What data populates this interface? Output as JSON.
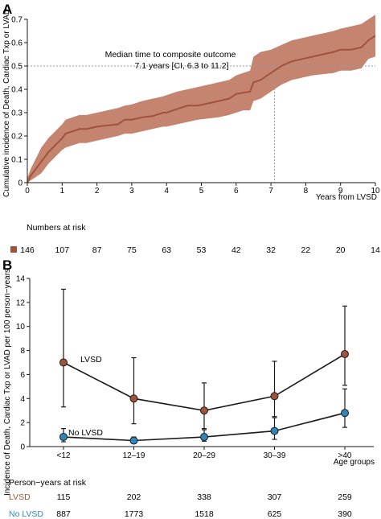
{
  "colors": {
    "lvsd": "#a0523d",
    "band": "#c48470",
    "no_lvsd": "#2f86bd",
    "axis": "#1a1a1a",
    "ref": "#9a9a9a"
  },
  "chart_data": [
    {
      "type": "line",
      "panel_label": "A",
      "ylabel": "Cumulative incidence of Death, Cardiac Txp or LVAD",
      "xlabel": "Years from LVSD",
      "xlim": [
        0,
        10
      ],
      "ylim": [
        0,
        0.7
      ],
      "xticks": [
        "0",
        "1",
        "2",
        "3",
        "4",
        "5",
        "6",
        "7",
        "8",
        "9",
        "10"
      ],
      "yticks": [
        "0",
        "0.1",
        "0.2",
        "0.3",
        "0.4",
        "0.5",
        "0.6",
        "0.7"
      ],
      "annotation": [
        "Median time to composite outcome",
        "7.1 years [CI, 6.3 to 11.2]"
      ],
      "median_reference": {
        "x": 7.1,
        "y": 0.5
      },
      "series": [
        {
          "x": [
            0,
            0.1,
            0.2,
            0.3,
            0.4,
            0.5,
            0.6,
            0.8,
            1.0,
            1.1,
            1.3,
            1.5,
            1.7,
            2.0,
            2.3,
            2.6,
            2.8,
            3.0,
            3.3,
            3.6,
            3.9,
            4.0,
            4.3,
            4.6,
            4.9,
            5.2,
            5.5,
            5.8,
            6.0,
            6.2,
            6.4,
            6.5,
            6.7,
            7.0,
            7.3,
            7.6,
            7.9,
            8.2,
            8.5,
            8.8,
            9.0,
            9.3,
            9.6,
            9.8,
            10.0
          ],
          "y": [
            0,
            0.03,
            0.05,
            0.07,
            0.09,
            0.11,
            0.13,
            0.16,
            0.19,
            0.21,
            0.22,
            0.23,
            0.23,
            0.24,
            0.245,
            0.25,
            0.27,
            0.27,
            0.28,
            0.285,
            0.3,
            0.3,
            0.315,
            0.33,
            0.33,
            0.34,
            0.35,
            0.36,
            0.38,
            0.385,
            0.39,
            0.43,
            0.44,
            0.47,
            0.5,
            0.52,
            0.53,
            0.54,
            0.55,
            0.56,
            0.57,
            0.57,
            0.58,
            0.61,
            0.63
          ],
          "lower": [
            0,
            0.01,
            0.02,
            0.03,
            0.04,
            0.06,
            0.08,
            0.11,
            0.14,
            0.15,
            0.16,
            0.17,
            0.17,
            0.18,
            0.19,
            0.2,
            0.21,
            0.21,
            0.22,
            0.23,
            0.24,
            0.24,
            0.25,
            0.26,
            0.27,
            0.275,
            0.28,
            0.29,
            0.3,
            0.31,
            0.31,
            0.35,
            0.36,
            0.39,
            0.42,
            0.44,
            0.45,
            0.46,
            0.465,
            0.47,
            0.48,
            0.48,
            0.49,
            0.53,
            0.54
          ],
          "upper": [
            0.02,
            0.06,
            0.09,
            0.12,
            0.15,
            0.17,
            0.19,
            0.22,
            0.25,
            0.27,
            0.28,
            0.29,
            0.29,
            0.3,
            0.31,
            0.32,
            0.33,
            0.335,
            0.35,
            0.36,
            0.37,
            0.375,
            0.39,
            0.4,
            0.41,
            0.42,
            0.43,
            0.44,
            0.46,
            0.47,
            0.48,
            0.54,
            0.56,
            0.57,
            0.59,
            0.61,
            0.62,
            0.63,
            0.64,
            0.65,
            0.66,
            0.67,
            0.68,
            0.7,
            0.72
          ]
        }
      ],
      "at_risk": {
        "title": "Numbers at risk",
        "values": [
          "146",
          "107",
          "87",
          "75",
          "63",
          "53",
          "42",
          "32",
          "22",
          "20",
          "14"
        ]
      }
    },
    {
      "type": "line",
      "panel_label": "B",
      "ylabel": "Incidence of Death, Cardiac Txp or LVAD per 100 person−years",
      "xlabel": "Age groups",
      "categories": [
        "<12",
        "12–19",
        "20–29",
        "30–39",
        ">40"
      ],
      "ylim": [
        0,
        14
      ],
      "yticks": [
        "0",
        "2",
        "4",
        "6",
        "8",
        "10",
        "12",
        "14"
      ],
      "series": [
        {
          "name": "LVSD",
          "values": [
            7.0,
            4.0,
            3.0,
            4.2,
            7.7
          ],
          "lower": [
            3.3,
            1.9,
            1.5,
            2.5,
            5.1
          ],
          "upper": [
            13.1,
            7.4,
            5.3,
            7.1,
            11.7
          ]
        },
        {
          "name": "No LVSD",
          "values": [
            0.8,
            0.5,
            0.8,
            1.3,
            2.8
          ],
          "lower": [
            0.4,
            0.3,
            0.45,
            0.6,
            1.6
          ],
          "upper": [
            1.5,
            0.8,
            1.4,
            2.4,
            4.8
          ]
        }
      ],
      "person_years": {
        "title": "Person−years at risk",
        "rows": [
          {
            "label": "LVSD",
            "values": [
              "115",
              "202",
              "338",
              "307",
              "259"
            ]
          },
          {
            "label": "No LVSD",
            "values": [
              "887",
              "1773",
              "1518",
              "625",
              "390"
            ]
          }
        ]
      }
    }
  ]
}
